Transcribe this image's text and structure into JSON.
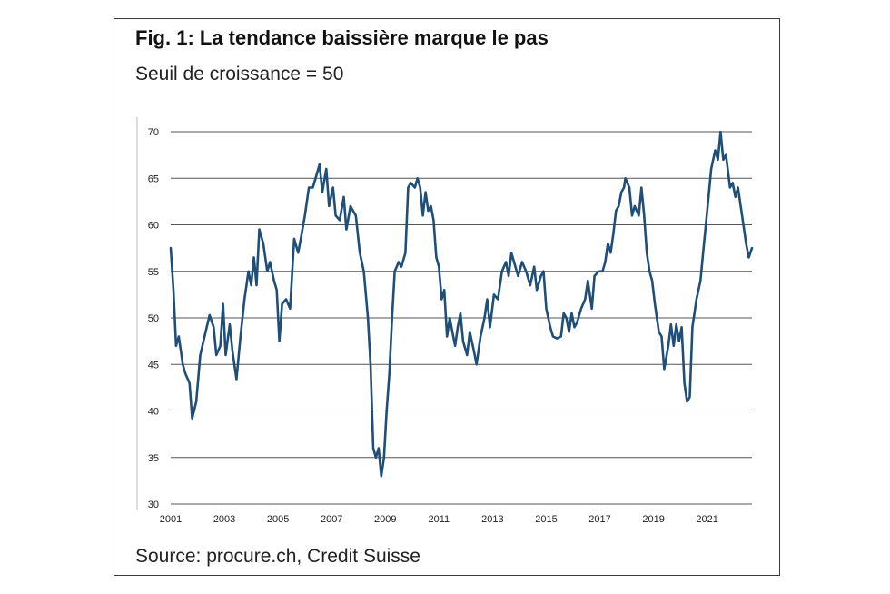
{
  "figure": {
    "title": "Fig. 1: La tendance baissière marque le pas",
    "subtitle": "Seuil de croissance = 50",
    "source": "Source: procure.ch, Credit Suisse"
  },
  "chart_data": {
    "type": "line",
    "title": "Fig. 1: La tendance baissière marque le pas",
    "subtitle": "Seuil de croissance = 50",
    "xlabel": "",
    "ylabel": "",
    "xlim": [
      2001.0,
      2022.67
    ],
    "ylim": [
      30,
      70
    ],
    "yticks": [
      30,
      35,
      40,
      45,
      50,
      55,
      60,
      65,
      70
    ],
    "xticks": [
      2001,
      2003,
      2005,
      2007,
      2009,
      2011,
      2013,
      2015,
      2017,
      2019,
      2021
    ],
    "grid": "horizontal",
    "line_color": "#1f4e79",
    "series": [
      {
        "values": [
          [
            2001.0,
            57.5
          ],
          [
            2001.1,
            53
          ],
          [
            2001.2,
            47
          ],
          [
            2001.3,
            48
          ],
          [
            2001.45,
            45
          ],
          [
            2001.55,
            44
          ],
          [
            2001.7,
            43
          ],
          [
            2001.8,
            39.2
          ],
          [
            2001.95,
            41
          ],
          [
            2002.1,
            46
          ],
          [
            2002.3,
            48.5
          ],
          [
            2002.45,
            50.3
          ],
          [
            2002.6,
            49
          ],
          [
            2002.7,
            46
          ],
          [
            2002.85,
            47
          ],
          [
            2002.95,
            51.5
          ],
          [
            2003.05,
            46
          ],
          [
            2003.2,
            49.3
          ],
          [
            2003.3,
            46.5
          ],
          [
            2003.45,
            43.4
          ],
          [
            2003.6,
            48
          ],
          [
            2003.75,
            52
          ],
          [
            2003.9,
            55
          ],
          [
            2004.0,
            53.5
          ],
          [
            2004.1,
            56.5
          ],
          [
            2004.2,
            53.5
          ],
          [
            2004.3,
            59.5
          ],
          [
            2004.45,
            58
          ],
          [
            2004.6,
            55
          ],
          [
            2004.7,
            56
          ],
          [
            2004.85,
            54
          ],
          [
            2004.95,
            53
          ],
          [
            2005.05,
            47.5
          ],
          [
            2005.15,
            51.5
          ],
          [
            2005.3,
            52
          ],
          [
            2005.45,
            51
          ],
          [
            2005.6,
            58.5
          ],
          [
            2005.75,
            57
          ],
          [
            2005.85,
            58.5
          ],
          [
            2006.0,
            61
          ],
          [
            2006.15,
            64
          ],
          [
            2006.3,
            64
          ],
          [
            2006.4,
            65
          ],
          [
            2006.55,
            66.5
          ],
          [
            2006.65,
            63.5
          ],
          [
            2006.8,
            66
          ],
          [
            2006.9,
            62
          ],
          [
            2007.05,
            64
          ],
          [
            2007.15,
            61
          ],
          [
            2007.3,
            60.5
          ],
          [
            2007.45,
            63
          ],
          [
            2007.55,
            59.5
          ],
          [
            2007.7,
            62
          ],
          [
            2007.8,
            61.5
          ],
          [
            2007.9,
            61
          ],
          [
            2008.05,
            57
          ],
          [
            2008.2,
            55
          ],
          [
            2008.35,
            50
          ],
          [
            2008.45,
            45
          ],
          [
            2008.55,
            36
          ],
          [
            2008.65,
            35
          ],
          [
            2008.75,
            36
          ],
          [
            2008.85,
            33
          ],
          [
            2008.95,
            35
          ],
          [
            2009.05,
            40
          ],
          [
            2009.15,
            44
          ],
          [
            2009.25,
            50
          ],
          [
            2009.35,
            55
          ],
          [
            2009.5,
            56
          ],
          [
            2009.6,
            55.5
          ],
          [
            2009.75,
            57
          ],
          [
            2009.85,
            64
          ],
          [
            2009.95,
            64.5
          ],
          [
            2010.1,
            64
          ],
          [
            2010.2,
            65
          ],
          [
            2010.3,
            64
          ],
          [
            2010.4,
            61
          ],
          [
            2010.5,
            63.5
          ],
          [
            2010.6,
            61.5
          ],
          [
            2010.7,
            62
          ],
          [
            2010.8,
            60.5
          ],
          [
            2010.9,
            56.5
          ],
          [
            2011.0,
            55.5
          ],
          [
            2011.1,
            52
          ],
          [
            2011.2,
            53
          ],
          [
            2011.3,
            48
          ],
          [
            2011.4,
            50
          ],
          [
            2011.5,
            48.5
          ],
          [
            2011.6,
            47
          ],
          [
            2011.7,
            49
          ],
          [
            2011.8,
            50.5
          ],
          [
            2011.9,
            47.5
          ],
          [
            2012.05,
            46
          ],
          [
            2012.15,
            48.5
          ],
          [
            2012.3,
            46.5
          ],
          [
            2012.4,
            45
          ],
          [
            2012.55,
            48
          ],
          [
            2012.7,
            50
          ],
          [
            2012.8,
            52
          ],
          [
            2012.9,
            49
          ],
          [
            2013.05,
            52.5
          ],
          [
            2013.2,
            52
          ],
          [
            2013.35,
            55
          ],
          [
            2013.5,
            56
          ],
          [
            2013.6,
            54.5
          ],
          [
            2013.7,
            57
          ],
          [
            2013.85,
            55.5
          ],
          [
            2013.95,
            54.5
          ],
          [
            2014.1,
            56
          ],
          [
            2014.25,
            55
          ],
          [
            2014.4,
            53.5
          ],
          [
            2014.55,
            55.5
          ],
          [
            2014.65,
            53
          ],
          [
            2014.8,
            54.5
          ],
          [
            2014.9,
            55
          ],
          [
            2015.0,
            51
          ],
          [
            2015.15,
            49
          ],
          [
            2015.25,
            48
          ],
          [
            2015.4,
            47.8
          ],
          [
            2015.55,
            48
          ],
          [
            2015.65,
            50.5
          ],
          [
            2015.75,
            50
          ],
          [
            2015.85,
            48.5
          ],
          [
            2015.95,
            50.5
          ],
          [
            2016.05,
            49
          ],
          [
            2016.15,
            49.5
          ],
          [
            2016.3,
            51
          ],
          [
            2016.45,
            52
          ],
          [
            2016.55,
            54
          ],
          [
            2016.7,
            51
          ],
          [
            2016.8,
            54.5
          ],
          [
            2016.95,
            55
          ],
          [
            2017.1,
            55
          ],
          [
            2017.2,
            56
          ],
          [
            2017.3,
            58
          ],
          [
            2017.4,
            57
          ],
          [
            2017.5,
            59
          ],
          [
            2017.6,
            61.5
          ],
          [
            2017.7,
            62
          ],
          [
            2017.8,
            63.5
          ],
          [
            2017.9,
            64
          ],
          [
            2017.95,
            65
          ],
          [
            2018.1,
            64
          ],
          [
            2018.2,
            61
          ],
          [
            2018.3,
            62
          ],
          [
            2018.45,
            61
          ],
          [
            2018.55,
            64
          ],
          [
            2018.65,
            61
          ],
          [
            2018.75,
            57
          ],
          [
            2018.85,
            55
          ],
          [
            2018.95,
            54
          ],
          [
            2019.05,
            51.5
          ],
          [
            2019.2,
            48.5
          ],
          [
            2019.3,
            48
          ],
          [
            2019.4,
            44.5
          ],
          [
            2019.55,
            47
          ],
          [
            2019.65,
            49.3
          ],
          [
            2019.75,
            47
          ],
          [
            2019.85,
            49.3
          ],
          [
            2019.95,
            47.5
          ],
          [
            2020.05,
            49
          ],
          [
            2020.15,
            43
          ],
          [
            2020.25,
            41
          ],
          [
            2020.35,
            41.5
          ],
          [
            2020.45,
            49
          ],
          [
            2020.6,
            52
          ],
          [
            2020.75,
            54
          ],
          [
            2020.85,
            57
          ],
          [
            2020.95,
            60
          ],
          [
            2021.05,
            63
          ],
          [
            2021.15,
            66
          ],
          [
            2021.3,
            68
          ],
          [
            2021.4,
            67
          ],
          [
            2021.5,
            70
          ],
          [
            2021.6,
            67
          ],
          [
            2021.7,
            67.5
          ],
          [
            2021.85,
            64
          ],
          [
            2021.95,
            64.5
          ],
          [
            2022.05,
            63
          ],
          [
            2022.15,
            64
          ],
          [
            2022.3,
            61
          ],
          [
            2022.45,
            58
          ],
          [
            2022.55,
            56.5
          ],
          [
            2022.67,
            57.5
          ]
        ]
      }
    ]
  }
}
